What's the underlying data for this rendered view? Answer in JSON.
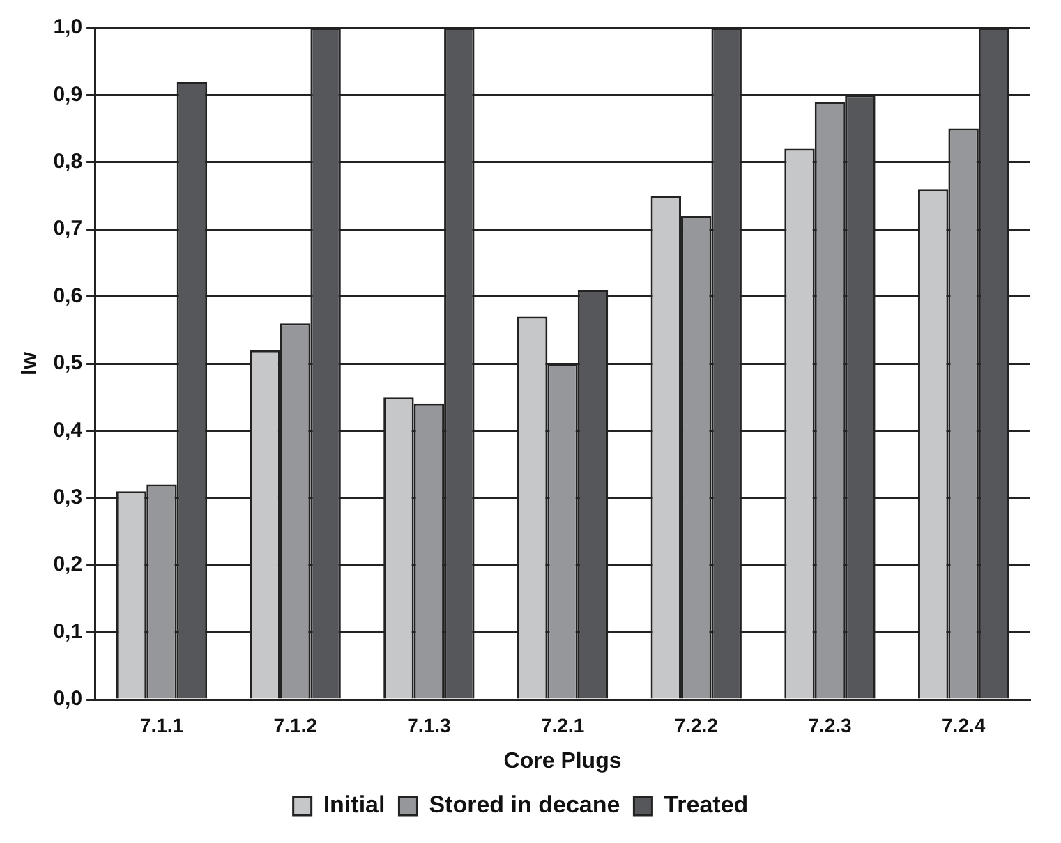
{
  "chart_data": {
    "type": "bar",
    "xlabel": "Core Plugs",
    "ylabel": "Iw",
    "categories": [
      "7.1.1",
      "7.1.2",
      "7.1.3",
      "7.2.1",
      "7.2.2",
      "7.2.3",
      "7.2.4"
    ],
    "series": [
      {
        "name": "Initial",
        "color": "#c6c7c9",
        "values": [
          0.31,
          0.52,
          0.45,
          0.57,
          0.75,
          0.82,
          0.76
        ]
      },
      {
        "name": "Stored in decane",
        "color": "#96979a",
        "values": [
          0.32,
          0.56,
          0.44,
          0.5,
          0.72,
          0.89,
          0.85
        ]
      },
      {
        "name": "Treated",
        "color": "#56575a",
        "values": [
          0.92,
          1.0,
          1.0,
          0.61,
          1.0,
          0.9,
          1.0
        ]
      }
    ],
    "ylim": [
      0,
      1
    ],
    "yticks": [
      {
        "value": 0,
        "label": "0,0"
      },
      {
        "value": 0.1,
        "label": "0,1"
      },
      {
        "value": 0.2,
        "label": "0,2"
      },
      {
        "value": 0.3,
        "label": "0,3"
      },
      {
        "value": 0.4,
        "label": "0,4"
      },
      {
        "value": 0.5,
        "label": "0,5"
      },
      {
        "value": 0.6,
        "label": "0,6"
      },
      {
        "value": 0.7,
        "label": "0,7"
      },
      {
        "value": 0.8,
        "label": "0,8"
      },
      {
        "value": 0.9,
        "label": "0,9"
      },
      {
        "value": 1,
        "label": "1,0"
      }
    ],
    "grid": "y",
    "legend": "bottom"
  }
}
